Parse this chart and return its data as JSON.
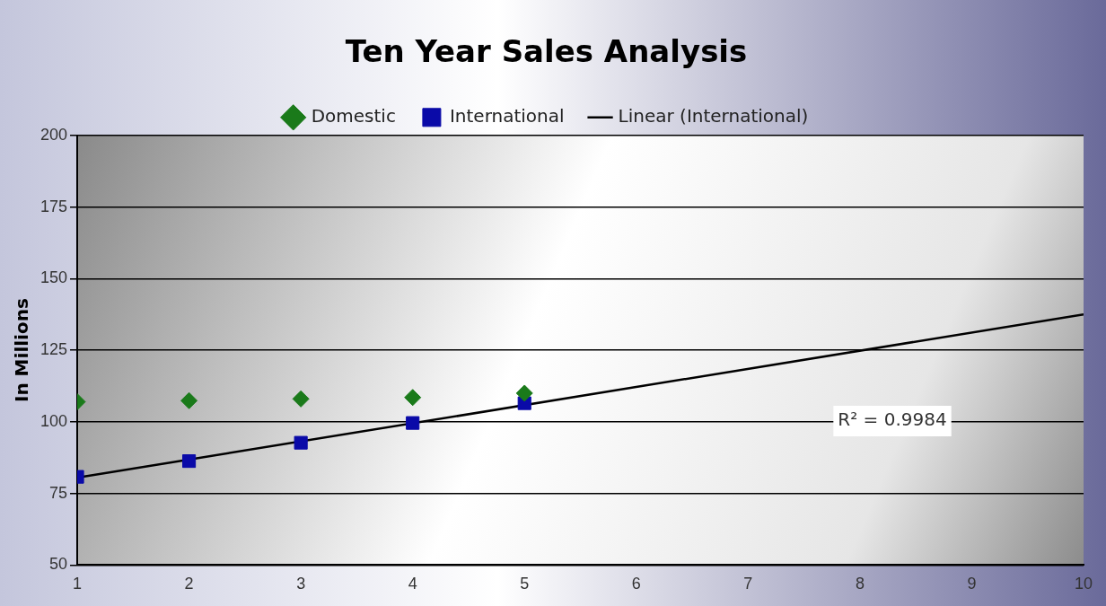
{
  "chart_data": {
    "type": "scatter",
    "title": "Ten Year Sales Analysis",
    "ylabel": "In Millions",
    "x": [
      1,
      2,
      3,
      4,
      5
    ],
    "series": [
      {
        "name": "Domestic",
        "color": "#1a7a1a",
        "marker": "diamond",
        "values": [
          107,
          107.4,
          108,
          108.5,
          110
        ]
      },
      {
        "name": "International",
        "color": "#0a0aa8",
        "marker": "square",
        "values": [
          80.8,
          86.3,
          92.7,
          99.6,
          106.5
        ]
      },
      {
        "name": "Linear (International)",
        "type": "line",
        "color": "#000000",
        "marker": "none",
        "x": [
          1,
          10
        ],
        "values": [
          80.5,
          137.5
        ]
      }
    ],
    "xlim": [
      1,
      10
    ],
    "xticks": [
      1,
      2,
      3,
      4,
      5,
      6,
      7,
      8,
      9,
      10
    ],
    "ylim": [
      50,
      200
    ],
    "yticks": [
      50,
      75,
      100,
      125,
      150,
      175,
      200
    ],
    "grid": "y",
    "legend": "top",
    "annotations": [
      "R² = 0.9984"
    ]
  }
}
